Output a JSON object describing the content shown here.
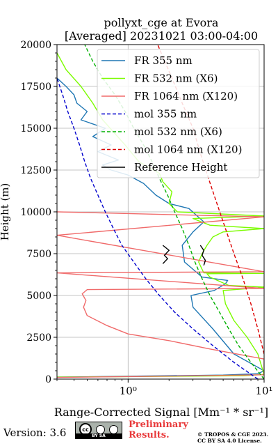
{
  "chart_data": {
    "type": "line",
    "title": "pollyxt_cge at Evora",
    "subtitle": "[Averaged] 20231021 03:00-04:00",
    "xlabel": "Range-Corrected Signal [Mm⁻¹ * sr⁻¹]",
    "ylabel": "Height (m)",
    "xscale": "log",
    "xlim": [
      0.3,
      10
    ],
    "ylim": [
      0,
      20000
    ],
    "x_ticks": [
      {
        "value": 1,
        "label": "10⁰"
      },
      {
        "value": 10,
        "label": "10¹"
      }
    ],
    "y_ticks": [
      "0",
      "2500",
      "5000",
      "7500",
      "10000",
      "12500",
      "15000",
      "17500",
      "20000"
    ],
    "grid": true,
    "legend_position": "top-right",
    "series": [
      {
        "name": "FR 355 nm",
        "color": "#1f77b4",
        "style": "solid",
        "points": [
          [
            0.3,
            120
          ],
          [
            5,
            240
          ],
          [
            9,
            320
          ],
          [
            10,
            500
          ],
          [
            6,
            1500
          ],
          [
            4.2,
            3000
          ],
          [
            3,
            4300
          ],
          [
            2.9,
            5000
          ],
          [
            4.3,
            5300
          ],
          [
            5.2,
            5700
          ],
          [
            5.4,
            5900
          ],
          [
            3.5,
            6100
          ],
          [
            2.6,
            7000
          ],
          [
            2.5,
            8000
          ],
          [
            3,
            8800
          ],
          [
            3.6,
            9400
          ],
          [
            2.8,
            10200
          ],
          [
            2,
            10500
          ],
          [
            1.6,
            11000
          ],
          [
            1.3,
            11700
          ],
          [
            1,
            12200
          ],
          [
            0.75,
            12500
          ],
          [
            0.65,
            12800
          ],
          [
            0.85,
            13100
          ],
          [
            0.6,
            13600
          ],
          [
            0.75,
            14000
          ],
          [
            0.55,
            14500
          ],
          [
            0.68,
            15000
          ],
          [
            0.45,
            15500
          ],
          [
            0.5,
            16000
          ],
          [
            0.42,
            16500
          ],
          [
            0.4,
            17000
          ],
          [
            0.35,
            17500
          ],
          [
            0.3,
            18000
          ]
        ]
      },
      {
        "name": "FR 532 nm (X6)",
        "color": "#7cfc00",
        "style": "solid",
        "points": [
          [
            0.3,
            120
          ],
          [
            7,
            200
          ],
          [
            10,
            280
          ],
          [
            9,
            1500
          ],
          [
            7.5,
            2500
          ],
          [
            6,
            3500
          ],
          [
            5.2,
            4500
          ],
          [
            5,
            5300
          ],
          [
            9,
            5450
          ],
          [
            10,
            5500
          ],
          [
            5.5,
            5600
          ],
          [
            4,
            6100
          ],
          [
            3.8,
            6300
          ],
          [
            10,
            6320
          ],
          [
            3.6,
            6350
          ],
          [
            3.3,
            7000
          ],
          [
            3.5,
            7500
          ],
          [
            3.8,
            8000
          ],
          [
            4.2,
            8500
          ],
          [
            5,
            8800
          ],
          [
            10,
            9000
          ],
          [
            4,
            9200
          ],
          [
            3,
            9600
          ],
          [
            10,
            9750
          ],
          [
            2.3,
            10000
          ],
          [
            2,
            10500
          ],
          [
            2.1,
            11200
          ],
          [
            1.8,
            11800
          ],
          [
            1.7,
            12300
          ],
          [
            1.2,
            13000
          ],
          [
            0.95,
            14000
          ],
          [
            0.65,
            15500
          ],
          [
            0.55,
            16500
          ],
          [
            0.45,
            17500
          ],
          [
            0.35,
            18500
          ],
          [
            0.3,
            19500
          ]
        ]
      },
      {
        "name": "FR 1064 nm (X120)",
        "color": "#f06a6a",
        "style": "solid",
        "points": [
          [
            0.3,
            100
          ],
          [
            2,
            180
          ],
          [
            10,
            260
          ],
          [
            10,
            1200
          ],
          [
            4,
            1800
          ],
          [
            2,
            2300
          ],
          [
            1,
            2700
          ],
          [
            0.7,
            3200
          ],
          [
            0.5,
            3800
          ],
          [
            0.47,
            4300
          ],
          [
            0.49,
            4700
          ],
          [
            0.46,
            5100
          ],
          [
            0.5,
            5350
          ],
          [
            10,
            5420
          ],
          [
            0.3,
            6350
          ],
          [
            10,
            6420
          ],
          [
            0.3,
            8600
          ],
          [
            10,
            9700
          ],
          [
            0.3,
            10000
          ]
        ]
      },
      {
        "name": "mol 355 nm",
        "color": "#0000cd",
        "style": "dashed",
        "points": [
          [
            9,
            0
          ],
          [
            6,
            1000
          ],
          [
            4.2,
            2000
          ],
          [
            3,
            3000
          ],
          [
            2.2,
            4000
          ],
          [
            1.7,
            5000
          ],
          [
            1.35,
            6000
          ],
          [
            1.1,
            7000
          ],
          [
            0.9,
            8000
          ],
          [
            0.78,
            9000
          ],
          [
            0.68,
            10000
          ],
          [
            0.6,
            11000
          ],
          [
            0.53,
            12000
          ],
          [
            0.48,
            13000
          ],
          [
            0.44,
            14000
          ],
          [
            0.4,
            15000
          ],
          [
            0.36,
            16000
          ],
          [
            0.33,
            17000
          ],
          [
            0.3,
            18000
          ]
        ]
      },
      {
        "name": "mol 532 nm (X6)",
        "color": "#00b000",
        "style": "dashed",
        "points": [
          [
            10,
            0
          ],
          [
            8,
            1000
          ],
          [
            6.5,
            2000
          ],
          [
            5.5,
            3000
          ],
          [
            4.7,
            4000
          ],
          [
            4,
            5000
          ],
          [
            3.5,
            6000
          ],
          [
            3.1,
            7000
          ],
          [
            2.8,
            8000
          ],
          [
            2.5,
            9000
          ],
          [
            2.2,
            10000
          ],
          [
            1.95,
            11000
          ],
          [
            1.7,
            12000
          ],
          [
            1.5,
            13000
          ],
          [
            1.3,
            14000
          ],
          [
            1.1,
            15000
          ],
          [
            0.95,
            16000
          ],
          [
            0.8,
            17000
          ],
          [
            0.65,
            18000
          ],
          [
            0.55,
            19000
          ],
          [
            0.48,
            20000
          ]
        ]
      },
      {
        "name": "mol 1064 nm (X120)",
        "color": "#dd0000",
        "style": "dashed",
        "points": [
          [
            10,
            1500
          ],
          [
            9,
            3000
          ],
          [
            8,
            4500
          ],
          [
            7,
            6000
          ],
          [
            6,
            7500
          ],
          [
            5.2,
            9000
          ],
          [
            4.5,
            10500
          ],
          [
            3.9,
            12000
          ],
          [
            3.4,
            13500
          ],
          [
            3,
            15000
          ],
          [
            2.5,
            16500
          ],
          [
            2.1,
            18000
          ],
          [
            1.75,
            19500
          ],
          [
            1.65,
            20000
          ]
        ]
      },
      {
        "name": "Reference Height",
        "color": "#000000",
        "style": "solid",
        "points": [
          [
            1.8,
            6900
          ],
          [
            1.95,
            7200
          ],
          [
            1.85,
            7400
          ],
          [
            2,
            7700
          ],
          [
            1.8,
            8000
          ],
          [
            3.6,
            6800
          ],
          [
            3.7,
            7100
          ],
          [
            3.5,
            7400
          ],
          [
            3.6,
            7700
          ],
          [
            3.4,
            8000
          ]
        ]
      }
    ]
  },
  "footer": {
    "version": "Version: 3.6",
    "license_badge": "BY SA",
    "preliminary": "Preliminary",
    "results": "Results.",
    "copyright_line1": "© TROPOS & CGE 2023.",
    "copyright_line2": "CC BY SA 4.0 License."
  }
}
